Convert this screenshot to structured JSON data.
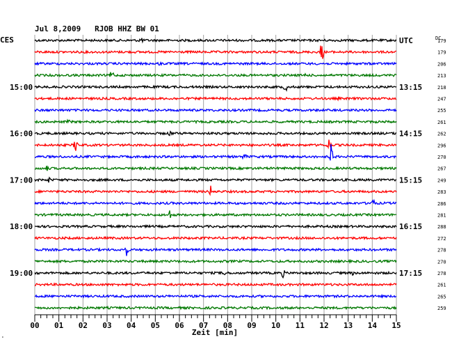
{
  "chart_data": {
    "type": "line",
    "title": "Jul 8,2009   RJOB HHZ BW 01",
    "left_axis_label": "CES",
    "right_axis_label": "UTC",
    "dc_label": "DC",
    "xlabel": "Zeit [min]",
    "xlim": [
      0,
      15
    ],
    "x_ticks": [
      "00",
      "01",
      "02",
      "03",
      "04",
      "05",
      "06",
      "07",
      "08",
      "09",
      "10",
      "11",
      "12",
      "13",
      "14",
      "15"
    ],
    "left_time_labels": [
      {
        "row": 4,
        "label": "15:00"
      },
      {
        "row": 8,
        "label": "16:00"
      },
      {
        "row": 12,
        "label": "17:00"
      },
      {
        "row": 16,
        "label": "18:00"
      },
      {
        "row": 20,
        "label": "19:00"
      }
    ],
    "right_time_labels": [
      {
        "row": 0,
        "label": "UTC"
      },
      {
        "row": 4,
        "label": "13:15"
      },
      {
        "row": 8,
        "label": "14:15"
      },
      {
        "row": 12,
        "label": "15:15"
      },
      {
        "row": 16,
        "label": "16:15"
      },
      {
        "row": 20,
        "label": "17:15"
      }
    ],
    "trace_colors": [
      "#000000",
      "#ff0000",
      "#0000ff",
      "#007800"
    ],
    "row_count": 24,
    "dc_offsets": [
      179,
      179,
      206,
      213,
      218,
      247,
      255,
      261,
      262,
      296,
      270,
      267,
      249,
      283,
      286,
      281,
      288,
      272,
      278,
      270,
      278,
      261,
      265,
      259
    ],
    "events": [
      {
        "row": 0,
        "minute": 4.4,
        "amplitude": 7
      },
      {
        "row": 1,
        "minute": 11.9,
        "amplitude": 16
      },
      {
        "row": 2,
        "minute": 5.2,
        "amplitude": 4
      },
      {
        "row": 3,
        "minute": 3.2,
        "amplitude": 9
      },
      {
        "row": 3,
        "minute": 11.2,
        "amplitude": 4
      },
      {
        "row": 4,
        "minute": 10.4,
        "amplitude": 8
      },
      {
        "row": 5,
        "minute": 5.7,
        "amplitude": 4
      },
      {
        "row": 5,
        "minute": 12.6,
        "amplitude": 3
      },
      {
        "row": 7,
        "minute": 1.4,
        "amplitude": 4
      },
      {
        "row": 8,
        "minute": 5.6,
        "amplitude": 6
      },
      {
        "row": 9,
        "minute": 1.7,
        "amplitude": 12
      },
      {
        "row": 9,
        "minute": 12.2,
        "amplitude": 11
      },
      {
        "row": 10,
        "minute": 8.7,
        "amplitude": 7
      },
      {
        "row": 10,
        "minute": 12.3,
        "amplitude": 20
      },
      {
        "row": 11,
        "minute": 0.5,
        "amplitude": 5
      },
      {
        "row": 12,
        "minute": 0.6,
        "amplitude": 5
      },
      {
        "row": 13,
        "minute": 7.3,
        "amplitude": 9
      },
      {
        "row": 14,
        "minute": 14.0,
        "amplitude": 12
      },
      {
        "row": 15,
        "minute": 5.6,
        "amplitude": 8
      },
      {
        "row": 18,
        "minute": 3.8,
        "amplitude": 10
      },
      {
        "row": 20,
        "minute": 7.9,
        "amplitude": 9
      },
      {
        "row": 20,
        "minute": 10.3,
        "amplitude": 7
      },
      {
        "row": 20,
        "minute": 13.2,
        "amplitude": 4
      }
    ],
    "grid": true
  }
}
